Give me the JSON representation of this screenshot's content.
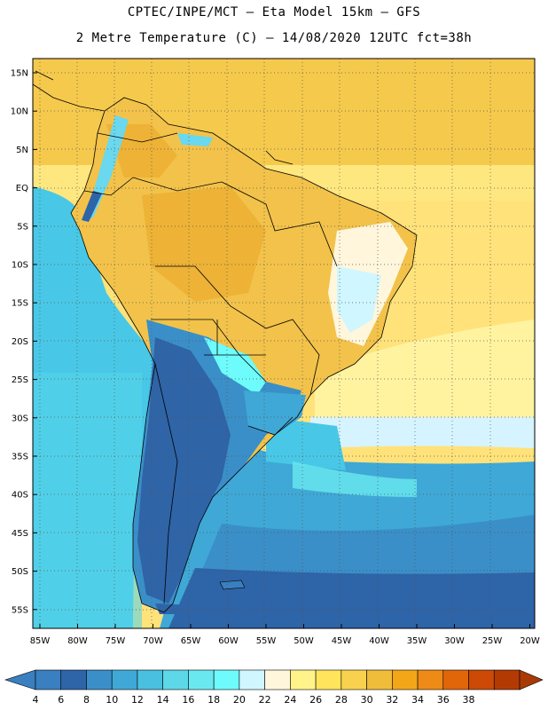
{
  "header": {
    "line1": "CPTEC/INPE/MCT –  Eta Model 15km – GFS",
    "line2": "2 Metre Temperature (C) – 14/08/2020 12UTC fct=38h"
  },
  "axes": {
    "lat_labels": [
      "15N",
      "10N",
      "5N",
      "EQ",
      "5S",
      "10S",
      "15S",
      "20S",
      "25S",
      "30S",
      "35S",
      "40S",
      "45S",
      "50S",
      "55S"
    ],
    "lon_labels": [
      "85W",
      "80W",
      "75W",
      "70W",
      "65W",
      "60W",
      "55W",
      "50W",
      "45W",
      "40W",
      "35W",
      "30W",
      "25W",
      "20W"
    ]
  },
  "colorbar": {
    "labels": [
      "4",
      "6",
      "8",
      "10",
      "12",
      "14",
      "16",
      "18",
      "20",
      "22",
      "24",
      "26",
      "28",
      "30",
      "32",
      "34",
      "36",
      "38"
    ],
    "colors": [
      "#3a7fbf",
      "#2e64a8",
      "#3a8fc8",
      "#3fa8d6",
      "#49c0e0",
      "#5cd8e8",
      "#6ae8f0",
      "#6dfbfb",
      "#d0f6ff",
      "#fff6dc",
      "#fff38a",
      "#ffe45c",
      "#f8d24e",
      "#f0bd3a",
      "#f3a618",
      "#ee8a16",
      "#e1660a",
      "#cc4a06",
      "#b43a04"
    ]
  },
  "map": {
    "ocean_color": "#48c8e6",
    "land_colors": {
      "warm": "#f2c24a",
      "hot": "#edb236",
      "cool": "#6ad8ee",
      "cold": "#2f64a7"
    }
  }
}
